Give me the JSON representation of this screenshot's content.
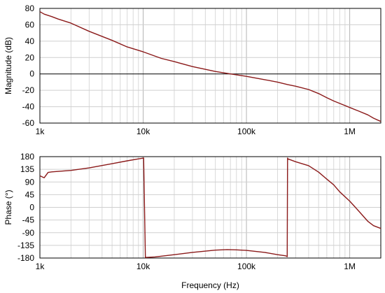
{
  "chart_data": [
    {
      "type": "line",
      "ylabel": "Magnitude (dB)",
      "xscale": "log",
      "xlim": [
        1000,
        2000000
      ],
      "ylim": [
        -60,
        80
      ],
      "yticks": [
        80,
        60,
        40,
        20,
        0,
        -20,
        -40,
        -60
      ],
      "xticks": [
        {
          "value": 1000,
          "label": "1k"
        },
        {
          "value": 10000,
          "label": "10k"
        },
        {
          "value": 100000,
          "label": "100k"
        },
        {
          "value": 1000000,
          "label": "1M"
        }
      ],
      "grid": true,
      "line_color": "#8b1a1a",
      "series": [
        {
          "x": [
            1000,
            1100,
            1300,
            1500,
            2000,
            3000,
            5000,
            7000,
            10000,
            15000,
            20000,
            30000,
            50000,
            70000,
            100000,
            150000,
            200000,
            250000,
            300000,
            400000,
            500000,
            600000,
            700000,
            800000,
            1000000,
            1200000,
            1500000,
            1700000,
            2000000
          ],
          "y": [
            76,
            73,
            70,
            67,
            62,
            52,
            41,
            33,
            27,
            19,
            15,
            9,
            3,
            0,
            -3,
            -7,
            -10,
            -13,
            -15,
            -19,
            -24,
            -29,
            -33,
            -36,
            -41,
            -45,
            -50,
            -54,
            -58
          ]
        }
      ]
    },
    {
      "type": "line",
      "xlabel": "Frequency (Hz)",
      "ylabel": "Phase (°)",
      "xscale": "log",
      "xlim": [
        1000,
        2000000
      ],
      "ylim": [
        -180,
        180
      ],
      "yticks": [
        180,
        135,
        90,
        45,
        0,
        -45,
        -90,
        -135,
        -180
      ],
      "xticks": [
        {
          "value": 1000,
          "label": "1k"
        },
        {
          "value": 10000,
          "label": "10k"
        },
        {
          "value": 100000,
          "label": "100k"
        },
        {
          "value": 1000000,
          "label": "1M"
        }
      ],
      "grid": true,
      "line_color": "#8b1a1a",
      "series": [
        {
          "x": [
            1000,
            1100,
            1200,
            1300,
            2000,
            3000,
            5000,
            7000,
            9000,
            9700,
            10100,
            10500,
            13000,
            20000,
            30000,
            50000,
            65000,
            80000,
            100000,
            150000,
            200000,
            240000,
            248000,
            250000,
            252000,
            300000,
            400000,
            500000,
            600000,
            700000,
            800000,
            1000000,
            1200000,
            1500000,
            1700000,
            2000000
          ],
          "y": [
            112,
            105,
            124,
            126,
            131,
            140,
            155,
            165,
            172,
            174,
            175,
            -178,
            -176,
            -168,
            -160,
            -152,
            -150,
            -151,
            -153,
            -160,
            -168,
            -172,
            -175,
            175,
            172,
            162,
            148,
            125,
            100,
            80,
            55,
            22,
            -10,
            -50,
            -65,
            -75
          ]
        }
      ]
    }
  ]
}
